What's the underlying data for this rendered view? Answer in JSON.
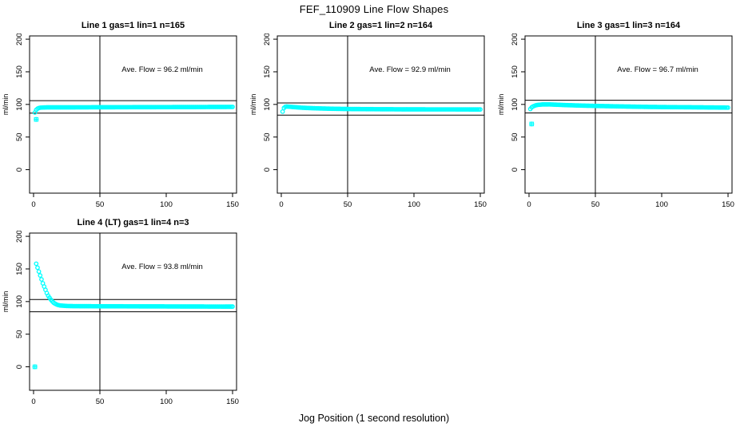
{
  "main_title": "FEF_110909  Line Flow Shapes",
  "xlabel": "Jog Position (1 second resolution)",
  "ylabel": "ml/min",
  "colors": {
    "points": "#00ffff",
    "axis": "#000000",
    "background": "#ffffff"
  },
  "chart_data": {
    "type": "scatter",
    "x_ticks": [
      0,
      50,
      100,
      150
    ],
    "y_ticks": [
      0,
      50,
      100,
      150,
      200
    ],
    "xlim": [
      -3,
      153
    ],
    "ylim": [
      -36,
      205
    ],
    "grid": false,
    "marker": "open-circle",
    "panels": [
      {
        "title": "Line 1 gas=1 lin=1 n=165",
        "annotation": "Ave. Flow =  96.2  ml/min",
        "ave_flow": 96.2,
        "ref_lines": [
          105.8,
          86.6
        ],
        "vline": 50,
        "n": 165,
        "curve": [
          [
            1,
            87.6
          ],
          [
            2,
            91.6
          ],
          [
            3,
            93.5
          ],
          [
            4,
            94.5
          ],
          [
            5,
            95.0
          ],
          [
            7,
            95.3
          ],
          [
            10,
            95.5
          ],
          [
            20,
            95.5
          ],
          [
            40,
            95.6
          ],
          [
            60,
            95.7
          ],
          [
            80,
            95.8
          ],
          [
            100,
            95.9
          ],
          [
            120,
            96.0
          ],
          [
            135,
            96.1
          ],
          [
            150,
            96.2
          ]
        ],
        "lone_points": [
          [
            2,
            77
          ]
        ]
      },
      {
        "title": "Line 2 gas=1 lin=2 n=164",
        "annotation": "Ave. Flow =  92.9  ml/min",
        "ave_flow": 92.9,
        "ref_lines": [
          102.2,
          83.6
        ],
        "vline": 50,
        "n": 164,
        "curve": [
          [
            1,
            89.0
          ],
          [
            2,
            94.5
          ],
          [
            3,
            96.3
          ],
          [
            4,
            96.8
          ],
          [
            6,
            96.5
          ],
          [
            10,
            95.8
          ],
          [
            15,
            95.0
          ],
          [
            20,
            94.5
          ],
          [
            30,
            93.8
          ],
          [
            40,
            93.3
          ],
          [
            50,
            93.0
          ],
          [
            70,
            92.7
          ],
          [
            90,
            92.5
          ],
          [
            110,
            92.4
          ],
          [
            130,
            92.4
          ],
          [
            150,
            92.3
          ]
        ],
        "lone_points": []
      },
      {
        "title": "Line 3 gas=1 lin=3 n=164",
        "annotation": "Ave. Flow =  96.7  ml/min",
        "ave_flow": 96.7,
        "ref_lines": [
          106.4,
          87.0
        ],
        "vline": 50,
        "n": 164,
        "curve": [
          [
            1,
            93.0
          ],
          [
            2,
            95.5
          ],
          [
            3,
            96.9
          ],
          [
            5,
            98.6
          ],
          [
            7,
            99.4
          ],
          [
            10,
            99.9
          ],
          [
            15,
            100.0
          ],
          [
            20,
            99.6
          ],
          [
            30,
            98.8
          ],
          [
            40,
            98.2
          ],
          [
            50,
            97.7
          ],
          [
            70,
            96.9
          ],
          [
            90,
            96.2
          ],
          [
            110,
            95.8
          ],
          [
            130,
            95.5
          ],
          [
            150,
            95.1
          ]
        ],
        "lone_points": [
          [
            2,
            70
          ]
        ]
      },
      {
        "title": "Line 4 (LT) gas=1 lin=4 n=3",
        "annotation": "Ave. Flow =  93.8  ml/min",
        "ave_flow": 93.8,
        "ref_lines": [
          103.2,
          84.4
        ],
        "vline": 50,
        "n": 3,
        "curve": [
          [
            2,
            158
          ],
          [
            3,
            152
          ],
          [
            4,
            146
          ],
          [
            5,
            140
          ],
          [
            6,
            134
          ],
          [
            7,
            128
          ],
          [
            8,
            123
          ],
          [
            9,
            118
          ],
          [
            10,
            113
          ],
          [
            11,
            109
          ],
          [
            12,
            106
          ],
          [
            13,
            103
          ],
          [
            14,
            100.5
          ],
          [
            15,
            98.5
          ],
          [
            16,
            97
          ],
          [
            18,
            95
          ],
          [
            20,
            94
          ],
          [
            25,
            93.2
          ],
          [
            30,
            93.0
          ],
          [
            40,
            92.9
          ],
          [
            50,
            92.8
          ],
          [
            70,
            92.7
          ],
          [
            90,
            92.6
          ],
          [
            110,
            92.5
          ],
          [
            130,
            92.4
          ],
          [
            150,
            92.3
          ]
        ],
        "lone_points": [
          [
            1,
            0
          ]
        ]
      }
    ]
  }
}
